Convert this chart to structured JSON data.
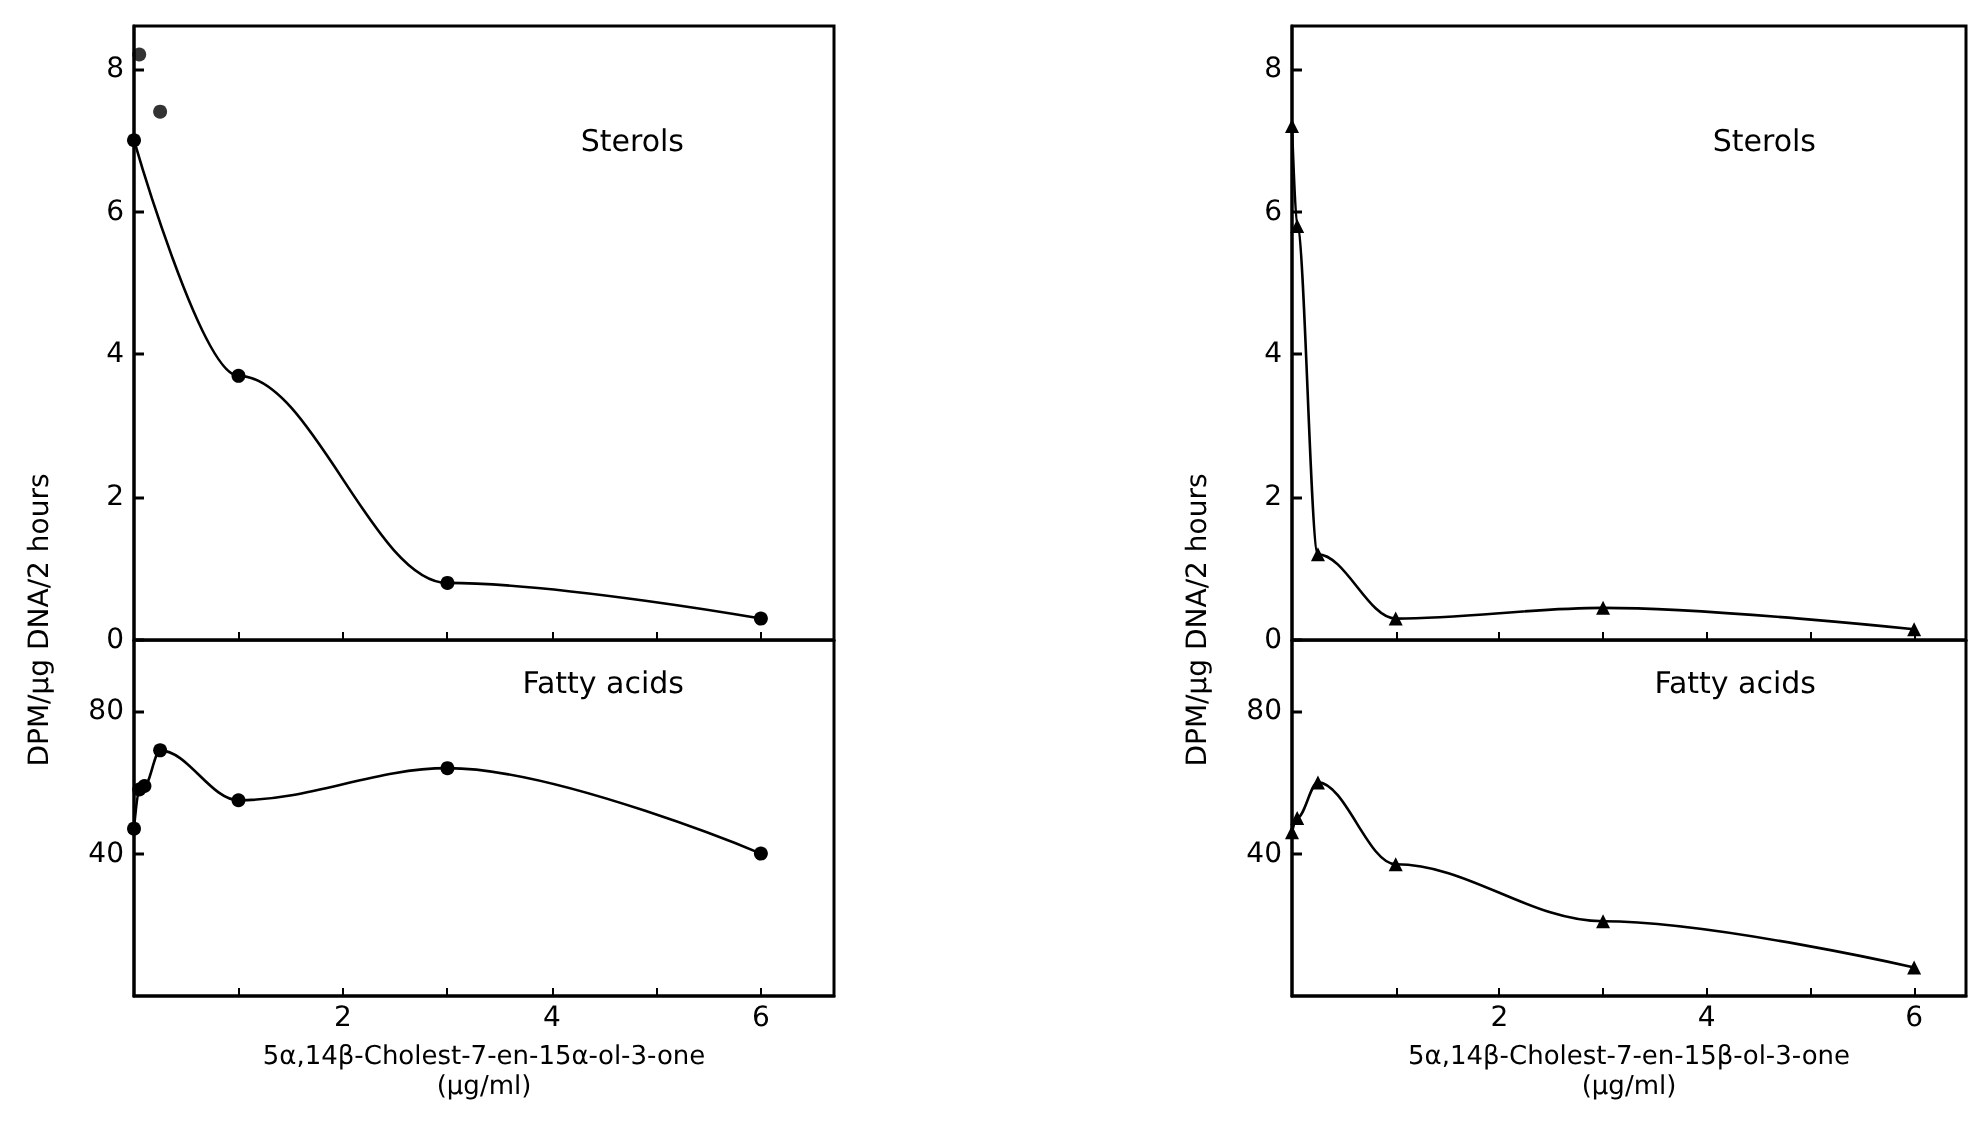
{
  "chart_data": [
    {
      "type": "line",
      "annotations": [
        "Sterols"
      ],
      "ylabel": "DPM/µg DNA/2 hours",
      "xlim": [
        0,
        6.7
      ],
      "xticks": [
        1,
        2,
        3,
        4,
        5,
        6
      ],
      "ylim": [
        0,
        8.6
      ],
      "yticks": [
        0,
        2,
        4,
        6,
        8
      ],
      "tick_labels": "y",
      "marker": "circle",
      "series": [
        {
          "x": [
            0,
            1,
            3,
            6
          ],
          "values": [
            7.0,
            3.7,
            0.8,
            0.3
          ],
          "color": "#000000"
        },
        {
          "type": "scatter",
          "x": [
            0.05,
            0.25
          ],
          "values": [
            8.2,
            7.4
          ],
          "color": "#000000"
        }
      ]
    },
    {
      "type": "line",
      "annotations": [
        "Sterols"
      ],
      "ylabel": "DPM/µg DNA/2 hours",
      "xlim": [
        0,
        6.5
      ],
      "xticks": [
        1,
        2,
        3,
        4,
        5,
        6
      ],
      "ylim": [
        0,
        8.6
      ],
      "yticks": [
        0,
        2,
        4,
        6,
        8
      ],
      "tick_labels": "y",
      "marker": "triangle",
      "series": [
        {
          "x": [
            0,
            0.05,
            0.25,
            1,
            3,
            6
          ],
          "values": [
            7.2,
            5.8,
            1.2,
            0.3,
            0.45,
            0.15
          ],
          "color": "#000000"
        }
      ]
    },
    {
      "type": "line",
      "annotations": [
        "Fatty acids"
      ],
      "xlabel": "5α,14β-Cholest-7-en-15α-ol-3-one\n(µg/ml)",
      "xlim": [
        0,
        6.7
      ],
      "xticks": [
        {
          "value": 1,
          "label": null
        },
        2,
        {
          "value": 3,
          "label": null
        },
        4,
        {
          "value": 5,
          "label": null
        },
        6
      ],
      "ylim": [
        0,
        100
      ],
      "yticks": [
        40,
        80
      ],
      "marker": "circle",
      "series": [
        {
          "x": [
            0,
            0.05,
            0.1,
            0.25,
            1,
            3,
            6
          ],
          "values": [
            47,
            58,
            59,
            69,
            55,
            64,
            40
          ],
          "color": "#000000"
        }
      ]
    },
    {
      "type": "line",
      "annotations": [
        "Fatty acids"
      ],
      "xlabel": "5α,14β-Cholest-7-en-15β-ol-3-one\n(µg/ml)",
      "xlim": [
        0,
        6.5
      ],
      "xticks": [
        {
          "value": 1,
          "label": null
        },
        2,
        {
          "value": 3,
          "label": null
        },
        4,
        {
          "value": 5,
          "label": null
        },
        6
      ],
      "ylim": [
        0,
        100
      ],
      "yticks": [
        40,
        80
      ],
      "marker": "triangle",
      "series": [
        {
          "x": [
            0,
            0.05,
            0.25,
            1,
            3,
            6
          ],
          "values": [
            46,
            50,
            60,
            37,
            21,
            8
          ],
          "color": "#000000"
        }
      ]
    }
  ]
}
